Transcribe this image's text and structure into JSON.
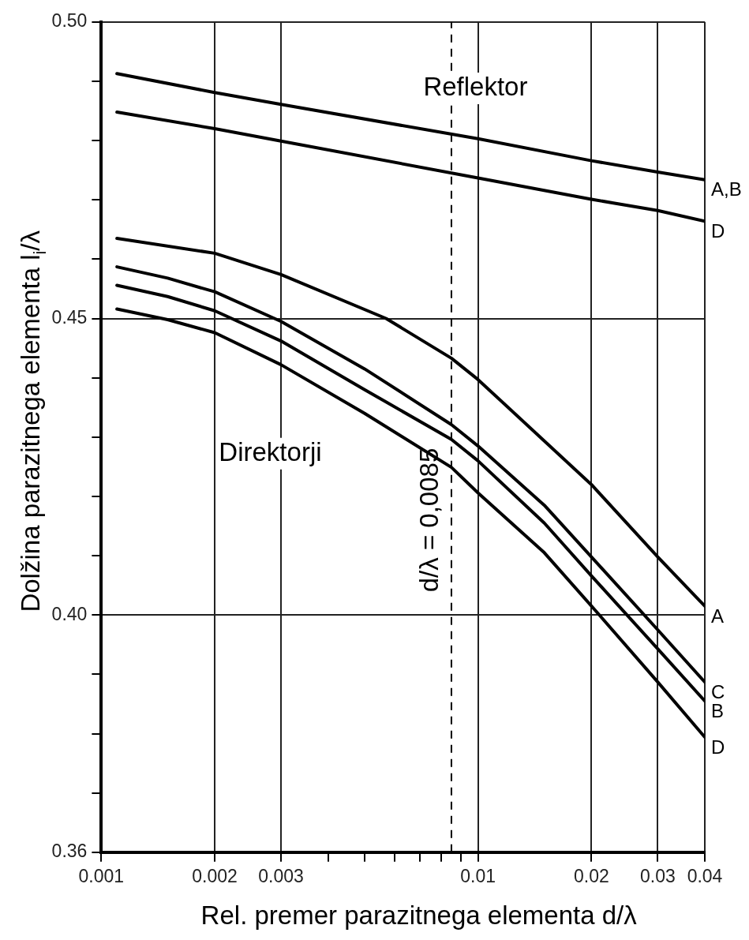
{
  "chart_data": {
    "type": "line",
    "xlabel": "Rel. premer parazitnega elementa d/λ",
    "ylabel": "Dolžina parazitnega elementa l$_{i}$/λ",
    "log": "x",
    "grid": true,
    "legend": false,
    "marker": "none",
    "line_style": "solid",
    "xlim": [
      0.001,
      0.04
    ],
    "ylim": [
      0.36,
      0.5
    ],
    "xticks": [
      0.001,
      0.002,
      0.003,
      {
        "value": 0.004,
        "label": null
      },
      {
        "value": 0.005,
        "label": null
      },
      {
        "value": 0.006,
        "label": null
      },
      {
        "value": 0.007,
        "label": null
      },
      {
        "value": 0.008,
        "label": null
      },
      {
        "value": 0.009,
        "label": null
      },
      0.01,
      0.02,
      0.03,
      0.04
    ],
    "yticks": [
      {
        "value": 0.36,
        "label": "0.36"
      },
      {
        "value": 0.37,
        "label": null
      },
      {
        "value": 0.38,
        "label": null
      },
      {
        "value": 0.39,
        "label": null
      },
      {
        "value": 0.4,
        "label": "0.40"
      },
      {
        "value": 0.41,
        "label": null
      },
      {
        "value": 0.42,
        "label": null
      },
      {
        "value": 0.43,
        "label": null
      },
      {
        "value": 0.44,
        "label": null
      },
      {
        "value": 0.45,
        "label": "0.45"
      },
      {
        "value": 0.46,
        "label": null
      },
      {
        "value": 0.47,
        "label": null
      },
      {
        "value": 0.48,
        "label": null
      },
      {
        "value": 0.49,
        "label": null
      },
      {
        "value": 0.5,
        "label": "0.50"
      }
    ],
    "series": [
      {
        "name": "A,B",
        "color": "#000000",
        "x": [
          0.0011,
          0.002,
          0.003,
          0.01,
          0.02,
          0.03,
          0.04
        ],
        "values": [
          0.4913,
          0.4881,
          0.4861,
          0.4803,
          0.4766,
          0.4747,
          0.4734
        ]
      },
      {
        "name": "D",
        "color": "#000000",
        "x": [
          0.0011,
          0.002,
          0.003,
          0.01,
          0.02,
          0.03,
          0.04
        ],
        "values": [
          0.4848,
          0.482,
          0.4799,
          0.4737,
          0.4701,
          0.4682,
          0.4664
        ]
      },
      {
        "name": "A",
        "color": "#000000",
        "x": [
          0.0011,
          0.002,
          0.003,
          0.0057,
          0.0085,
          0.01,
          0.02,
          0.03,
          0.04
        ],
        "values": [
          0.4635,
          0.461,
          0.4574,
          0.45,
          0.4433,
          0.4397,
          0.422,
          0.4098,
          0.4015
        ]
      },
      {
        "name": "C",
        "color": "#000000",
        "x": [
          0.0011,
          0.0015,
          0.002,
          0.003,
          0.005,
          0.0085,
          0.01,
          0.015,
          0.02,
          0.03,
          0.04
        ],
        "values": [
          0.4587,
          0.4568,
          0.4545,
          0.4495,
          0.4415,
          0.4321,
          0.4285,
          0.4185,
          0.4098,
          0.3975,
          0.3887
        ]
      },
      {
        "name": "B",
        "color": "#000000",
        "x": [
          0.0011,
          0.0015,
          0.002,
          0.003,
          0.005,
          0.0085,
          0.01,
          0.015,
          0.02,
          0.03,
          0.04
        ],
        "values": [
          0.4556,
          0.4537,
          0.4513,
          0.4462,
          0.438,
          0.4296,
          0.426,
          0.4155,
          0.4066,
          0.3943,
          0.3855
        ]
      },
      {
        "name": "D",
        "color": "#000000",
        "x": [
          0.0011,
          0.0015,
          0.002,
          0.003,
          0.005,
          0.0085,
          0.01,
          0.015,
          0.021,
          0.03,
          0.04
        ],
        "values": [
          0.4516,
          0.4498,
          0.4476,
          0.4422,
          0.434,
          0.4249,
          0.4206,
          0.4105,
          0.4,
          0.3887,
          0.3794
        ]
      }
    ],
    "ref_lines": [
      {
        "axis": "x",
        "value": 0.0085,
        "label": "d/λ = 0,0085",
        "line_style": "dashed",
        "color": "#000000"
      }
    ],
    "annotations": [
      "Reflektor",
      "Direktorji"
    ]
  }
}
